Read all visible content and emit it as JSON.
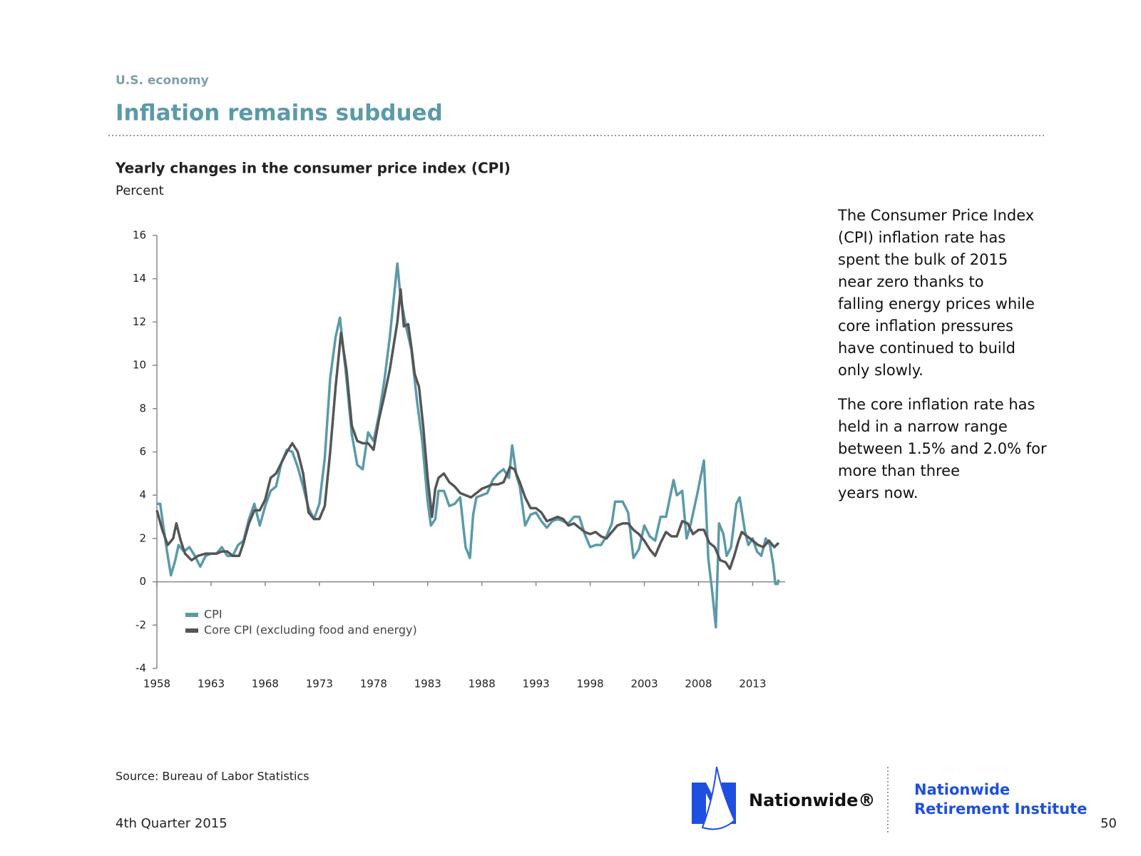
{
  "section": "U.S. economy",
  "heading": "Inflation remains subdued",
  "chart_data": {
    "type": "line",
    "title": "Yearly changes in the consumer price index (CPI)",
    "y_label": "Percent",
    "xlim": [
      1958,
      2016
    ],
    "xticks": [
      1958,
      1963,
      1968,
      1973,
      1978,
      1983,
      1988,
      1993,
      1998,
      2003,
      2008,
      2013
    ],
    "ylim": [
      -4,
      16
    ],
    "yticks": [
      -4,
      -2,
      0,
      2,
      4,
      6,
      8,
      10,
      12,
      14,
      16
    ],
    "legend": "lower left",
    "series": [
      {
        "name": "CPI",
        "color": "#5b9aa9",
        "x": [
          1958.0,
          1958.3,
          1958.7,
          1959.0,
          1959.3,
          1959.7,
          1960.0,
          1960.5,
          1961.0,
          1961.5,
          1962.0,
          1962.5,
          1963.0,
          1963.5,
          1964.0,
          1964.5,
          1965.0,
          1965.5,
          1966.0,
          1966.5,
          1967.0,
          1967.5,
          1968.0,
          1968.5,
          1969.0,
          1969.5,
          1970.0,
          1970.5,
          1971.0,
          1971.5,
          1972.0,
          1972.5,
          1973.0,
          1973.5,
          1974.0,
          1974.5,
          1974.9,
          1975.5,
          1976.0,
          1976.5,
          1977.0,
          1977.5,
          1978.0,
          1978.5,
          1979.0,
          1979.5,
          1980.2,
          1980.5,
          1981.0,
          1981.5,
          1982.0,
          1982.5,
          1983.0,
          1983.3,
          1983.7,
          1984.0,
          1984.5,
          1985.0,
          1985.5,
          1986.0,
          1986.5,
          1986.9,
          1987.2,
          1987.5,
          1988.0,
          1988.5,
          1989.0,
          1989.5,
          1990.0,
          1990.5,
          1990.8,
          1991.2,
          1991.5,
          1992.0,
          1992.5,
          1993.0,
          1993.5,
          1994.0,
          1994.5,
          1995.0,
          1995.5,
          1996.0,
          1996.5,
          1997.0,
          1997.5,
          1998.0,
          1998.5,
          1999.0,
          1999.5,
          2000.0,
          2000.3,
          2001.0,
          2001.5,
          2002.0,
          2002.5,
          2003.0,
          2003.5,
          2004.0,
          2004.5,
          2005.0,
          2005.7,
          2006.0,
          2006.5,
          2006.9,
          2007.3,
          2007.9,
          2008.5,
          2008.9,
          2009.3,
          2009.6,
          2009.9,
          2010.3,
          2010.6,
          2011.0,
          2011.5,
          2011.8,
          2012.3,
          2012.6,
          2013.0,
          2013.4,
          2013.8,
          2014.2,
          2014.6,
          2014.9,
          2015.1,
          2015.3,
          2015.4
        ],
        "values": [
          3.6,
          3.6,
          2.2,
          1.2,
          0.3,
          1.0,
          1.7,
          1.4,
          1.6,
          1.2,
          0.7,
          1.2,
          1.3,
          1.3,
          1.6,
          1.2,
          1.2,
          1.7,
          1.9,
          2.9,
          3.6,
          2.6,
          3.5,
          4.2,
          4.4,
          5.5,
          6.1,
          6.0,
          5.3,
          4.4,
          3.4,
          2.9,
          3.6,
          5.7,
          9.4,
          11.3,
          12.2,
          9.4,
          6.8,
          5.4,
          5.2,
          6.9,
          6.5,
          7.7,
          9.3,
          11.3,
          14.7,
          13.1,
          11.8,
          10.7,
          8.4,
          6.5,
          3.7,
          2.6,
          2.9,
          4.2,
          4.2,
          3.5,
          3.6,
          3.9,
          1.6,
          1.1,
          3.1,
          3.9,
          4.0,
          4.1,
          4.7,
          5.0,
          5.2,
          4.8,
          6.3,
          4.9,
          4.4,
          2.6,
          3.1,
          3.2,
          2.8,
          2.5,
          2.8,
          2.9,
          2.8,
          2.7,
          3.0,
          3.0,
          2.2,
          1.6,
          1.7,
          1.7,
          2.1,
          2.7,
          3.7,
          3.7,
          3.2,
          1.1,
          1.5,
          2.6,
          2.1,
          1.9,
          3.0,
          3.0,
          4.7,
          4.0,
          4.2,
          2.0,
          2.7,
          4.1,
          5.6,
          1.1,
          -0.6,
          -2.1,
          2.7,
          2.2,
          1.2,
          1.6,
          3.6,
          3.9,
          2.3,
          1.7,
          2.0,
          1.4,
          1.2,
          2.0,
          1.7,
          0.8,
          -0.1,
          -0.1,
          0.1
        ]
      },
      {
        "name": "Core CPI (excluding food and energy)",
        "color": "#555555",
        "x": [
          1958.0,
          1958.5,
          1959.0,
          1959.5,
          1959.8,
          1960.2,
          1960.6,
          1961.2,
          1961.8,
          1962.5,
          1963.0,
          1963.5,
          1964.0,
          1964.5,
          1965.0,
          1965.6,
          1966.0,
          1966.5,
          1967.0,
          1967.5,
          1968.0,
          1968.5,
          1969.0,
          1969.5,
          1970.0,
          1970.5,
          1971.0,
          1971.5,
          1972.0,
          1972.5,
          1973.0,
          1973.5,
          1974.0,
          1974.5,
          1975.0,
          1975.5,
          1976.0,
          1976.5,
          1977.0,
          1977.5,
          1978.0,
          1978.5,
          1979.0,
          1979.5,
          1980.2,
          1980.5,
          1980.8,
          1981.2,
          1981.5,
          1981.8,
          1982.2,
          1982.6,
          1983.0,
          1983.4,
          1983.7,
          1984.0,
          1984.5,
          1985.0,
          1985.5,
          1986.0,
          1986.5,
          1987.0,
          1987.5,
          1988.0,
          1988.5,
          1989.0,
          1989.5,
          1990.0,
          1990.6,
          1991.0,
          1991.5,
          1992.0,
          1992.5,
          1993.0,
          1993.5,
          1994.0,
          1994.5,
          1995.0,
          1995.5,
          1996.0,
          1996.5,
          1997.0,
          1997.5,
          1998.0,
          1998.5,
          1999.0,
          1999.5,
          2000.0,
          2000.5,
          2001.0,
          2001.5,
          2002.0,
          2002.5,
          2003.0,
          2003.5,
          2004.0,
          2004.5,
          2005.0,
          2005.5,
          2006.0,
          2006.5,
          2007.0,
          2007.5,
          2008.0,
          2008.5,
          2009.0,
          2009.5,
          2010.0,
          2010.5,
          2010.9,
          2011.3,
          2011.7,
          2012.0,
          2012.5,
          2013.0,
          2013.5,
          2014.0,
          2014.5,
          2015.0,
          2015.4
        ],
        "values": [
          3.3,
          2.4,
          1.7,
          2.0,
          2.7,
          1.9,
          1.3,
          1.0,
          1.2,
          1.3,
          1.3,
          1.3,
          1.4,
          1.4,
          1.2,
          1.2,
          1.8,
          2.7,
          3.3,
          3.3,
          3.8,
          4.8,
          5.0,
          5.5,
          6.0,
          6.4,
          6.0,
          5.0,
          3.2,
          2.9,
          2.9,
          3.5,
          6.0,
          9.0,
          11.5,
          9.8,
          7.2,
          6.5,
          6.4,
          6.4,
          6.1,
          7.5,
          8.6,
          9.8,
          12.0,
          13.5,
          11.8,
          11.9,
          10.8,
          9.6,
          9.0,
          7.1,
          4.8,
          3.0,
          4.3,
          4.8,
          5.0,
          4.6,
          4.4,
          4.1,
          4.0,
          3.9,
          4.1,
          4.3,
          4.4,
          4.5,
          4.5,
          4.6,
          5.3,
          5.2,
          4.6,
          3.9,
          3.4,
          3.4,
          3.2,
          2.8,
          2.9,
          3.0,
          2.9,
          2.6,
          2.7,
          2.5,
          2.3,
          2.2,
          2.3,
          2.1,
          2.0,
          2.3,
          2.6,
          2.7,
          2.7,
          2.4,
          2.2,
          1.9,
          1.5,
          1.2,
          1.8,
          2.3,
          2.1,
          2.1,
          2.8,
          2.7,
          2.2,
          2.4,
          2.4,
          1.8,
          1.6,
          1.0,
          0.9,
          0.6,
          1.2,
          1.9,
          2.3,
          2.1,
          1.9,
          1.7,
          1.6,
          1.9,
          1.6,
          1.8
        ]
      }
    ]
  },
  "commentary": [
    [
      "The Consumer Price Index",
      "(CPI) inflation rate has",
      "spent the bulk of 2015",
      "near zero thanks to",
      "falling energy prices while",
      "core inflation pressures",
      "have continued to build",
      "only slowly."
    ],
    [
      "The core inflation rate has",
      "held in a narrow range",
      "between 1.5% and 2.0% for",
      "more than three",
      "years now."
    ]
  ],
  "source": "Source: Bureau of Labor Statistics",
  "date": "4th Quarter 2015",
  "logo": "Nationwide®",
  "institute": [
    "Nationwide",
    "Retirement Institute"
  ],
  "page_number": "50"
}
